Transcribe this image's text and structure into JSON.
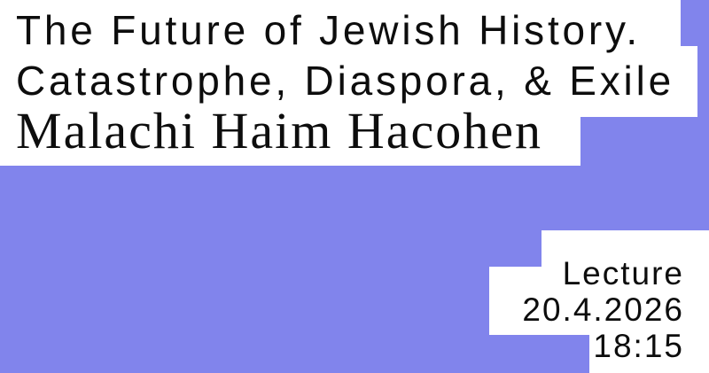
{
  "colors": {
    "background": "#8184EC",
    "panel": "#FFFFFF",
    "text": "#0D0D0D"
  },
  "title": {
    "line1": "The Future of Jewish History.",
    "line2": "Catastrophe, Diaspora, & Exile"
  },
  "speaker": "Malachi Haim Hacohen",
  "event": {
    "type": "Lecture",
    "date": "20.4.2026",
    "time": "18:15"
  }
}
